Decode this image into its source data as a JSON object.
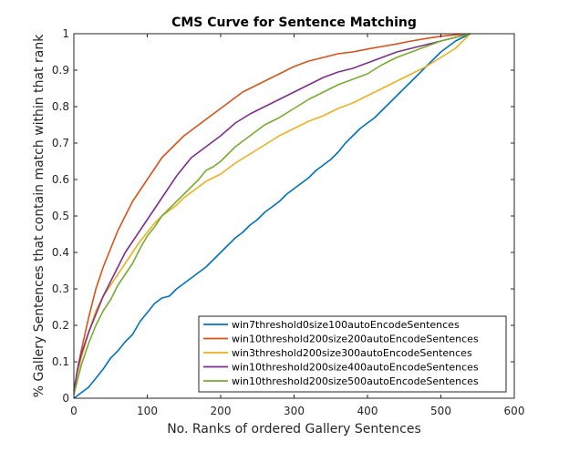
{
  "chart_data": {
    "type": "line",
    "title": "CMS Curve for Sentence Matching",
    "xlabel": "No. Ranks of ordered Gallery Sentences",
    "ylabel": "% Gallery Sentences that contain match within that rank",
    "xlim": [
      0,
      600
    ],
    "ylim": [
      0,
      1
    ],
    "xticks": [
      0,
      100,
      200,
      300,
      400,
      500,
      600
    ],
    "yticks": [
      0,
      0.1,
      0.2,
      0.3,
      0.4,
      0.5,
      0.6,
      0.7,
      0.8,
      0.9,
      1
    ],
    "xtick_labels": [
      "0",
      "100",
      "200",
      "300",
      "400",
      "500",
      "600"
    ],
    "ytick_labels": [
      "0",
      "0.1",
      "0.2",
      "0.3",
      "0.4",
      "0.5",
      "0.6",
      "0.7",
      "0.8",
      "0.9",
      "1"
    ],
    "grid": false,
    "legend_position": "bottom-right",
    "series": [
      {
        "name": "win7threshold0size100autoEncodeSentences",
        "color": "#0072BD",
        "x": [
          0,
          10,
          20,
          30,
          40,
          50,
          60,
          70,
          80,
          90,
          100,
          110,
          120,
          130,
          140,
          150,
          160,
          170,
          180,
          190,
          200,
          210,
          220,
          230,
          240,
          250,
          260,
          270,
          280,
          290,
          300,
          310,
          320,
          330,
          340,
          350,
          360,
          370,
          380,
          390,
          400,
          410,
          420,
          430,
          440,
          450,
          460,
          470,
          480,
          490,
          500,
          510,
          520,
          530,
          540
        ],
        "y": [
          0,
          0.015,
          0.03,
          0.055,
          0.08,
          0.11,
          0.13,
          0.155,
          0.175,
          0.21,
          0.235,
          0.26,
          0.275,
          0.28,
          0.3,
          0.315,
          0.33,
          0.345,
          0.36,
          0.38,
          0.4,
          0.42,
          0.44,
          0.455,
          0.475,
          0.49,
          0.51,
          0.525,
          0.54,
          0.56,
          0.575,
          0.59,
          0.605,
          0.625,
          0.64,
          0.655,
          0.675,
          0.7,
          0.72,
          0.74,
          0.755,
          0.77,
          0.79,
          0.81,
          0.83,
          0.85,
          0.87,
          0.89,
          0.91,
          0.93,
          0.95,
          0.965,
          0.98,
          0.99,
          1.0
        ]
      },
      {
        "name": "win10threshold200size200autoEncodeSentences",
        "color": "#D95319",
        "x": [
          0,
          5,
          10,
          20,
          30,
          40,
          50,
          60,
          70,
          80,
          90,
          100,
          110,
          120,
          130,
          140,
          150,
          160,
          170,
          180,
          190,
          200,
          210,
          220,
          230,
          240,
          250,
          260,
          270,
          280,
          290,
          300,
          320,
          340,
          360,
          380,
          400,
          420,
          440,
          460,
          480,
          500,
          520,
          540
        ],
        "y": [
          0.01,
          0.08,
          0.13,
          0.22,
          0.3,
          0.36,
          0.41,
          0.46,
          0.5,
          0.54,
          0.57,
          0.6,
          0.63,
          0.66,
          0.68,
          0.7,
          0.72,
          0.735,
          0.75,
          0.765,
          0.78,
          0.795,
          0.81,
          0.825,
          0.84,
          0.85,
          0.86,
          0.87,
          0.88,
          0.89,
          0.9,
          0.91,
          0.925,
          0.935,
          0.945,
          0.95,
          0.958,
          0.965,
          0.972,
          0.98,
          0.987,
          0.993,
          0.997,
          1.0
        ]
      },
      {
        "name": "win3threshold200size300autoEncodeSentences",
        "color": "#EDB120",
        "x": [
          0,
          5,
          10,
          20,
          30,
          40,
          50,
          60,
          70,
          80,
          90,
          100,
          110,
          120,
          130,
          140,
          150,
          160,
          170,
          180,
          190,
          200,
          220,
          240,
          260,
          280,
          300,
          320,
          340,
          360,
          380,
          400,
          420,
          440,
          460,
          480,
          500,
          520,
          540
        ],
        "y": [
          0.02,
          0.07,
          0.11,
          0.18,
          0.24,
          0.28,
          0.31,
          0.34,
          0.37,
          0.4,
          0.43,
          0.455,
          0.48,
          0.5,
          0.515,
          0.53,
          0.55,
          0.565,
          0.58,
          0.595,
          0.605,
          0.615,
          0.645,
          0.67,
          0.695,
          0.72,
          0.74,
          0.76,
          0.775,
          0.795,
          0.81,
          0.83,
          0.85,
          0.87,
          0.89,
          0.91,
          0.935,
          0.96,
          1.0
        ]
      },
      {
        "name": "win10threshold200size400autoEncodeSentences",
        "color": "#7E2F8E",
        "x": [
          0,
          5,
          10,
          20,
          30,
          40,
          50,
          60,
          70,
          80,
          90,
          100,
          110,
          120,
          130,
          140,
          150,
          160,
          170,
          180,
          190,
          200,
          220,
          240,
          260,
          280,
          300,
          320,
          340,
          360,
          380,
          400,
          420,
          440,
          460,
          480,
          500,
          520,
          540
        ],
        "y": [
          0.02,
          0.08,
          0.12,
          0.18,
          0.23,
          0.28,
          0.32,
          0.36,
          0.4,
          0.43,
          0.46,
          0.49,
          0.52,
          0.55,
          0.58,
          0.61,
          0.635,
          0.66,
          0.675,
          0.69,
          0.705,
          0.72,
          0.755,
          0.78,
          0.8,
          0.82,
          0.84,
          0.86,
          0.88,
          0.895,
          0.905,
          0.92,
          0.935,
          0.95,
          0.96,
          0.97,
          0.98,
          0.99,
          1.0
        ]
      },
      {
        "name": "win10threshold200size500autoEncodeSentences",
        "color": "#77AC30",
        "x": [
          0,
          5,
          10,
          20,
          30,
          40,
          50,
          60,
          70,
          80,
          90,
          100,
          110,
          120,
          130,
          140,
          150,
          160,
          170,
          180,
          190,
          200,
          220,
          240,
          260,
          280,
          300,
          320,
          340,
          360,
          380,
          400,
          420,
          440,
          460,
          480,
          500,
          520,
          540
        ],
        "y": [
          0.01,
          0.05,
          0.09,
          0.15,
          0.2,
          0.24,
          0.27,
          0.31,
          0.34,
          0.37,
          0.41,
          0.445,
          0.47,
          0.5,
          0.52,
          0.54,
          0.56,
          0.58,
          0.6,
          0.625,
          0.635,
          0.65,
          0.69,
          0.72,
          0.75,
          0.77,
          0.795,
          0.82,
          0.84,
          0.86,
          0.875,
          0.89,
          0.915,
          0.935,
          0.95,
          0.965,
          0.98,
          0.99,
          1.0
        ]
      }
    ]
  }
}
